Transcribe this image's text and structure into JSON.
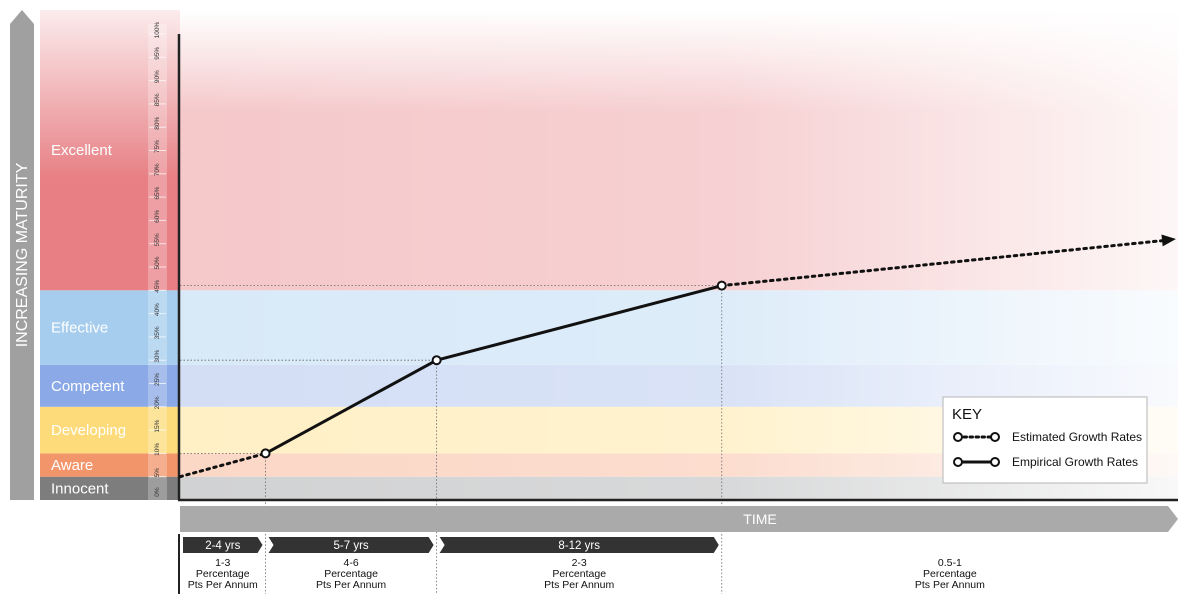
{
  "chart_data": {
    "type": "line",
    "y_axis_title": "INCREASING MATURITY",
    "x_axis_title": "TIME",
    "ylim": [
      0,
      100
    ],
    "y_ticks": [
      "0%",
      "5%",
      "10%",
      "15%",
      "20%",
      "25%",
      "30%",
      "35%",
      "40%",
      "45%",
      "50%",
      "55%",
      "60%",
      "65%",
      "70%",
      "75%",
      "80%",
      "85%",
      "90%",
      "95%",
      "100%"
    ],
    "bands": [
      {
        "label": "Innocent",
        "from": 0,
        "to": 5,
        "color": "#7d7d7d",
        "fill": "#d1d2d3"
      },
      {
        "label": "Aware",
        "from": 5,
        "to": 10,
        "color": "#f2956a",
        "fill": "#fbd7c6"
      },
      {
        "label": "Developing",
        "from": 10,
        "to": 20,
        "color": "#fddb7a",
        "fill": "#fff0c6"
      },
      {
        "label": "Competent",
        "from": 20,
        "to": 29,
        "color": "#8aa9e6",
        "fill": "#d3def5"
      },
      {
        "label": "Effective",
        "from": 29,
        "to": 45,
        "color": "#a6cdee",
        "fill": "#d8e9f8"
      },
      {
        "label": "Excellent",
        "from": 45,
        "to": 100,
        "color": "#e77f84",
        "fill": "#f5c8ca"
      }
    ],
    "phases": [
      {
        "duration": "2-4 yrs",
        "rate_value": "1-3",
        "rate_unit": "Percentage",
        "rate_suffix": "Pts Per Annum"
      },
      {
        "duration": "5-7 yrs",
        "rate_value": "4-6",
        "rate_unit": "Percentage",
        "rate_suffix": "Pts Per Annum"
      },
      {
        "duration": "8-12 yrs",
        "rate_value": "2-3",
        "rate_unit": "Percentage",
        "rate_suffix": "Pts Per Annum"
      },
      {
        "duration": "",
        "rate_value": "0.5-1",
        "rate_unit": "Percentage",
        "rate_suffix": "Pts Per Annum"
      }
    ],
    "phase_bounds": [
      0,
      3,
      9,
      19,
      35
    ],
    "series": [
      {
        "name": "Estimated Growth Rates",
        "style": "dotted",
        "points": [
          [
            0,
            5
          ],
          [
            3,
            10
          ]
        ]
      },
      {
        "name": "Empirical Growth Rates",
        "style": "solid",
        "points": [
          [
            3,
            10
          ],
          [
            9,
            30
          ],
          [
            19,
            46
          ]
        ]
      },
      {
        "name": "Estimated Growth Rates",
        "style": "dotted",
        "points": [
          [
            19,
            46
          ],
          [
            35,
            56
          ]
        ]
      }
    ],
    "milestones": [
      [
        3,
        10
      ],
      [
        9,
        30
      ],
      [
        19,
        46
      ]
    ],
    "legend": {
      "title": "KEY",
      "position": "bottom-right",
      "items": [
        {
          "label": "Estimated Growth Rates",
          "style": "dotted"
        },
        {
          "label": "Empirical Growth Rates",
          "style": "solid"
        }
      ]
    }
  }
}
